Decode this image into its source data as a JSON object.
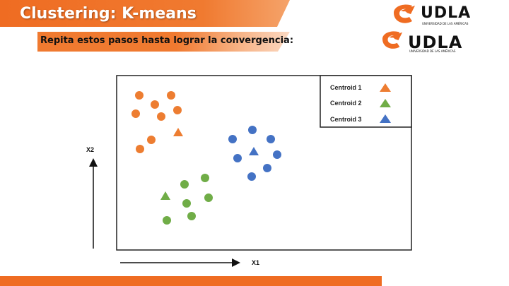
{
  "slide": {
    "title": "Clustering: K-means",
    "subtitle": "Repita estos pasos hasta lograr la convergencia:"
  },
  "logo": {
    "brand": "UDLA",
    "tagline": "UNIVERSIDAD DE LAS AMÉRICAS"
  },
  "colors": {
    "accent": "#ef6c22",
    "cluster1": "#ed7d31",
    "cluster2": "#70ad47",
    "cluster3": "#4472c4"
  },
  "axes": {
    "x_label": "X1",
    "y_label": "X2"
  },
  "legend": [
    {
      "label": "Centroid 1",
      "color": "#ed7d31"
    },
    {
      "label": "Centroid 2",
      "color": "#70ad47"
    },
    {
      "label": "Centroid 3",
      "color": "#4472c4"
    }
  ]
}
